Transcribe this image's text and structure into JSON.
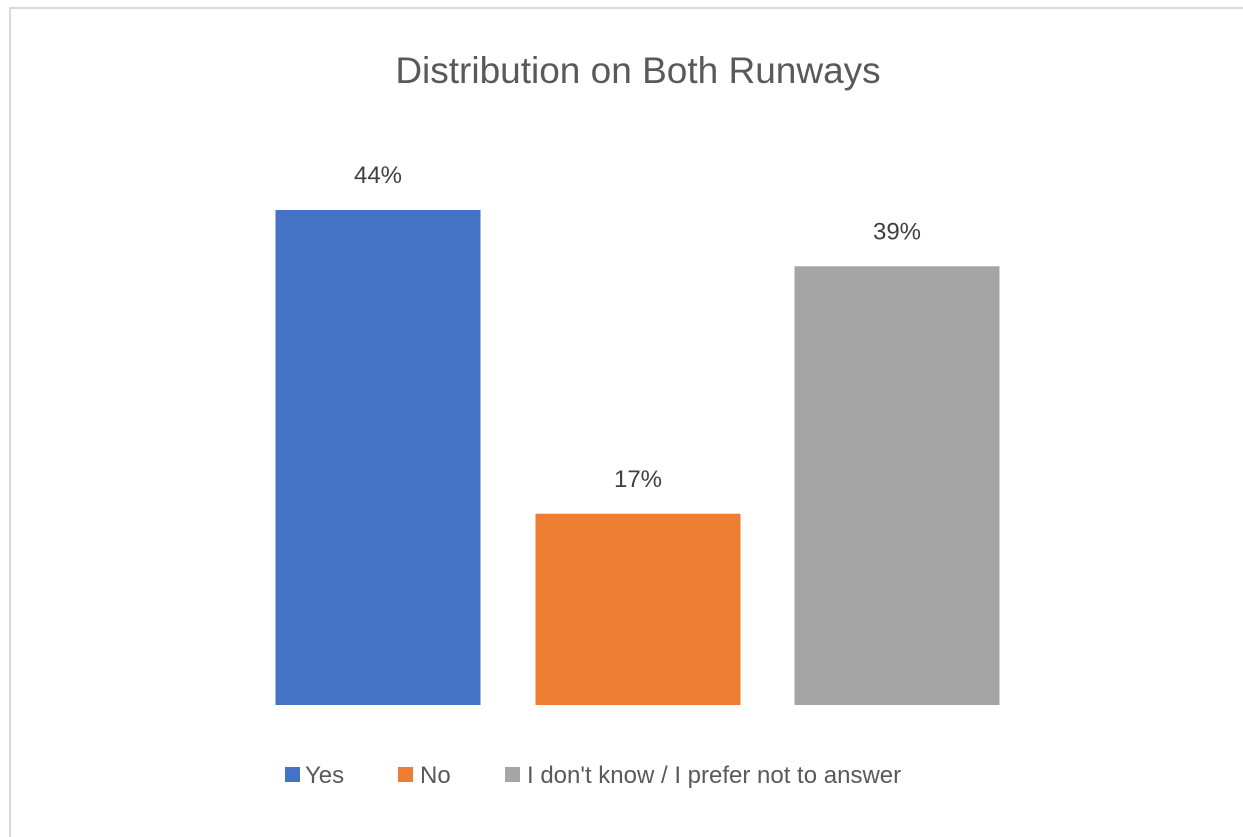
{
  "chart_data": {
    "type": "bar",
    "title": "Distribution on Both Runways",
    "categories": [
      "Yes",
      "No",
      "I don't know / I prefer not to answer"
    ],
    "values": [
      44,
      17,
      39
    ],
    "data_labels": [
      "44%",
      "17%",
      "39%"
    ],
    "colors": [
      "#4472C4",
      "#ED7D31",
      "#A5A5A5"
    ],
    "ylim": [
      0,
      44
    ],
    "grid": false,
    "legend": "bottom"
  }
}
